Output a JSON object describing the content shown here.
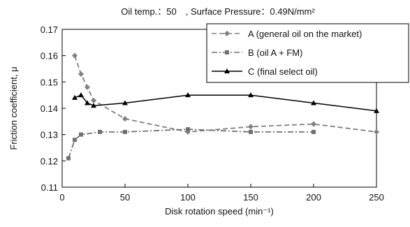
{
  "chart_data": {
    "type": "line",
    "title": "Oil temp.：50　, Surface Pressure：0.49N/mm²",
    "xlabel": "Disk rotation speed (min⁻¹)",
    "ylabel": "Friction coefficient, μ",
    "xlim": [
      0,
      250
    ],
    "ylim": [
      0.11,
      0.17
    ],
    "xticks": [
      0,
      50,
      100,
      150,
      200,
      250
    ],
    "yticks": [
      0.11,
      0.12,
      0.13,
      0.14,
      0.15,
      0.16,
      0.17
    ],
    "xtick_labels": [
      "0",
      "50",
      "100",
      "150",
      "200",
      "250"
    ],
    "ytick_labels": [
      "0.11",
      "0.12",
      "0.13",
      "0.14",
      "0.15",
      "0.16",
      "0.17"
    ],
    "grid": false,
    "legend_position": "top-right",
    "series": [
      {
        "name": "A (general oil on the market)",
        "color": "#808080",
        "marker": "diamond",
        "line_style": "dashed",
        "x": [
          10,
          15,
          20,
          25,
          50,
          100,
          150,
          200,
          250
        ],
        "y": [
          0.16,
          0.153,
          0.148,
          0.143,
          0.136,
          0.131,
          0.133,
          0.134,
          0.131
        ]
      },
      {
        "name": "B (oil A + FM)",
        "color": "#707070",
        "marker": "square",
        "line_style": "dash-dot",
        "x": [
          5,
          10,
          15,
          30,
          50,
          100,
          150,
          200
        ],
        "y": [
          0.121,
          0.128,
          0.13,
          0.131,
          0.131,
          0.132,
          0.131,
          0.131
        ]
      },
      {
        "name": "C (final select oil)",
        "color": "#000000",
        "marker": "triangle",
        "line_style": "solid",
        "x": [
          10,
          15,
          20,
          25,
          50,
          100,
          150,
          200,
          250
        ],
        "y": [
          0.144,
          0.145,
          0.142,
          0.141,
          0.142,
          0.145,
          0.145,
          0.142,
          0.139
        ]
      }
    ]
  }
}
